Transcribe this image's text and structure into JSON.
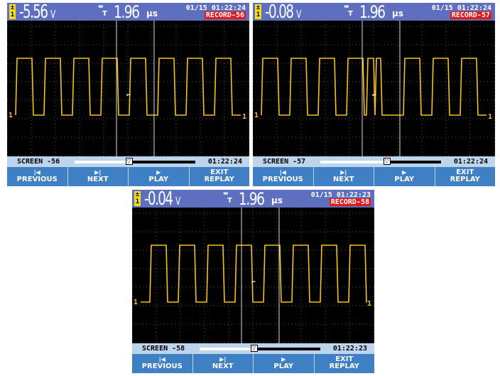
{
  "captures": [
    {
      "channel": "1",
      "voltage": "-5.56",
      "voltage_unit": "V",
      "timebase_t": "T",
      "timebase_value": "1.96",
      "timebase_unit": "μs",
      "datetime": "01/15 01:22:24",
      "record": "RECORD-56",
      "screen_label": "SCREEN -56",
      "screen_time": "01:22:24",
      "slider_fraction": 0.45,
      "waveform_edges": [
        [
          12,
          "up"
        ],
        [
          35,
          "down"
        ],
        [
          52,
          "up"
        ],
        [
          75,
          "down"
        ],
        [
          92,
          "up"
        ],
        [
          115,
          "down"
        ],
        [
          132,
          "up"
        ],
        [
          155,
          "down"
        ],
        [
          172,
          "up"
        ],
        [
          195,
          "down"
        ],
        [
          212,
          "up"
        ],
        [
          235,
          "down"
        ],
        [
          252,
          "up"
        ],
        [
          275,
          "down"
        ],
        [
          292,
          "up"
        ],
        [
          315,
          "down"
        ]
      ]
    },
    {
      "channel": "1",
      "voltage": "-0.08",
      "voltage_unit": "V",
      "timebase_t": "T",
      "timebase_value": "1.96",
      "timebase_unit": "μs",
      "datetime": "01/15 01:22:24",
      "record": "RECORD-57",
      "screen_label": "SCREEN -57",
      "screen_time": "01:22:24",
      "slider_fraction": 0.55,
      "waveform_edges": [
        [
          12,
          "up"
        ],
        [
          35,
          "down"
        ],
        [
          52,
          "up"
        ],
        [
          75,
          "down"
        ],
        [
          92,
          "up"
        ],
        [
          115,
          "down"
        ],
        [
          132,
          "up"
        ],
        [
          155,
          "down"
        ],
        [
          160,
          "up"
        ],
        [
          170,
          "down"
        ],
        [
          172,
          "up"
        ],
        [
          180,
          "down"
        ],
        [
          212,
          "up"
        ],
        [
          235,
          "down"
        ],
        [
          252,
          "up"
        ],
        [
          275,
          "down"
        ],
        [
          292,
          "up"
        ],
        [
          315,
          "down"
        ]
      ]
    },
    {
      "channel": "1",
      "voltage": "-0.04",
      "voltage_unit": "V",
      "timebase_t": "T",
      "timebase_value": "1.96",
      "timebase_unit": "μs",
      "datetime": "01/15 01:22:23",
      "record": "RECORD-58",
      "screen_label": "SCREEN -58",
      "screen_time": "01:22:23",
      "slider_fraction": 0.45,
      "waveform_edges": [
        [
          25,
          "up"
        ],
        [
          48,
          "down"
        ],
        [
          65,
          "up"
        ],
        [
          88,
          "down"
        ],
        [
          105,
          "up"
        ],
        [
          128,
          "down"
        ],
        [
          145,
          "up"
        ],
        [
          168,
          "down"
        ],
        [
          185,
          "up"
        ],
        [
          208,
          "down"
        ],
        [
          225,
          "up"
        ],
        [
          248,
          "down"
        ],
        [
          265,
          "up"
        ],
        [
          288,
          "down"
        ],
        [
          305,
          "up"
        ],
        [
          328,
          "down"
        ]
      ]
    }
  ],
  "buttons": {
    "previous": "PREVIOUS",
    "next": "NEXT",
    "play": "PLAY",
    "exit_line1": "EXIT",
    "exit_line2": "REPLAY"
  },
  "colors": {
    "trace": "#f5c31c",
    "header": "#5f6fbf",
    "record_badge": "#e11b1b",
    "softkey": "#3f7fc4",
    "status_bar": "#bcd4ec"
  },
  "icons": {
    "channel": "channel-1-badge-icon",
    "timebase": "timebase-icon",
    "previous": "skip-previous-icon",
    "next": "skip-next-icon",
    "play": "play-icon"
  }
}
